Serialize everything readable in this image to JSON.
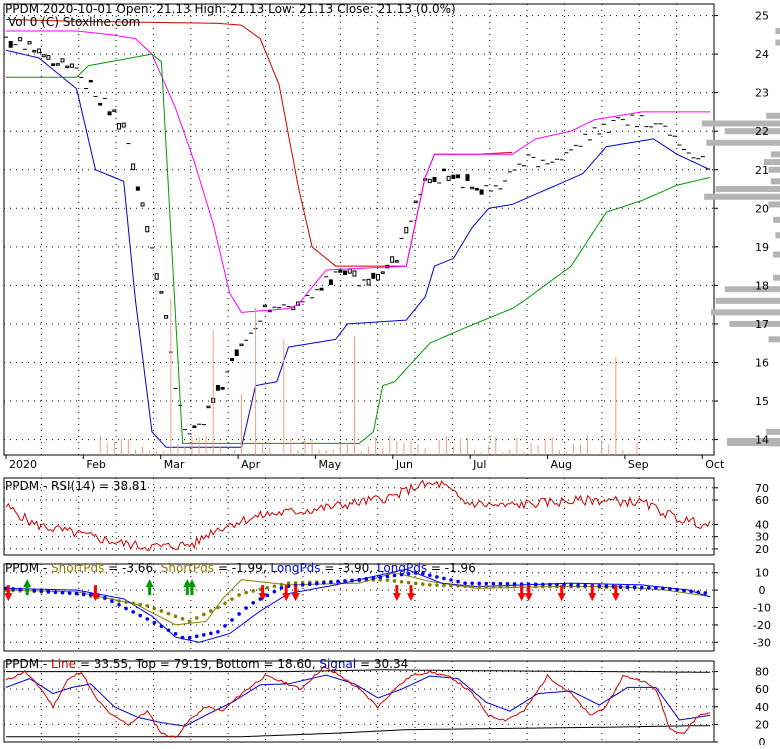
{
  "header": {
    "main": "PPDM  2020-10-01 Open: 21.13  High: 21.13  Low: 21.13  Close: 21.13 (0.0%)",
    "vol": "Vol 0   (C) Stoxline.com"
  },
  "colors": {
    "background": "#ffffff",
    "grid": "#000000",
    "price": "#000000",
    "ma_short": "#0000cc",
    "ma_mid": "#009900",
    "channel_upper": "#ff00ff",
    "channel_upper2": "#cc0000",
    "volume": "#f0a080",
    "volume_profile": "#b4b4b4",
    "rsi": "#cc0000",
    "short_pds": "#808000",
    "long_pds": "#0000ff",
    "arrow_up": "#009900",
    "arrow_down": "#ff0000",
    "sig_black": "#000000"
  },
  "chart_data": [
    {
      "type": "candlestick",
      "x_labels": [
        "2020",
        "Feb",
        "Mar",
        "Apr",
        "May",
        "Jun",
        "Jul",
        "Aug",
        "Sep",
        "Oct"
      ],
      "y_ticks": [
        14,
        15,
        16,
        17,
        18,
        19,
        20,
        21,
        22,
        23,
        24,
        25
      ],
      "ylim": [
        13.6,
        25.3
      ],
      "volume_profile": [
        {
          "price": 13.9,
          "weight": 0.05
        },
        {
          "price": 14.2,
          "weight": 0.06
        },
        {
          "price": 16.6,
          "weight": 0.05
        },
        {
          "price": 17.0,
          "weight": 0.22
        },
        {
          "price": 17.3,
          "weight": 0.3
        },
        {
          "price": 17.6,
          "weight": 0.28
        },
        {
          "price": 17.9,
          "weight": 0.24
        },
        {
          "price": 18.2,
          "weight": 0.03
        },
        {
          "price": 18.8,
          "weight": 0.03
        },
        {
          "price": 19.3,
          "weight": 0.02
        },
        {
          "price": 19.7,
          "weight": 0.03
        },
        {
          "price": 20.1,
          "weight": 0.05
        },
        {
          "price": 20.3,
          "weight": 0.33
        },
        {
          "price": 20.5,
          "weight": 0.28
        },
        {
          "price": 20.7,
          "weight": 0.04
        },
        {
          "price": 21.0,
          "weight": 0.05
        },
        {
          "price": 21.2,
          "weight": 0.07
        },
        {
          "price": 21.4,
          "weight": 0.04
        },
        {
          "price": 21.7,
          "weight": 0.32
        },
        {
          "price": 22.0,
          "weight": 0.24
        },
        {
          "price": 22.2,
          "weight": 0.34
        },
        {
          "price": 22.4,
          "weight": 0.06
        },
        {
          "price": 24.3,
          "weight": 0.02
        },
        {
          "price": 24.6,
          "weight": 0.02
        }
      ]
    },
    {
      "type": "line",
      "title": "PPDM - RSI(14) = 38.81",
      "y_ticks": [
        20,
        30,
        40,
        60,
        70
      ],
      "ylim": [
        15,
        78
      ]
    },
    {
      "type": "line",
      "title_parts": [
        {
          "text": "PPDM - ",
          "color": "#000000"
        },
        {
          "text": "ShortPds",
          "color": "#808000"
        },
        {
          "text": " = -3.66, ",
          "color": "#000000"
        },
        {
          "text": "ShortPds",
          "color": "#808000"
        },
        {
          "text": " = -1.99, ",
          "color": "#000000"
        },
        {
          "text": "LongPds",
          "color": "#0000ff"
        },
        {
          "text": " = -3.90, ",
          "color": "#000000"
        },
        {
          "text": "LongPds",
          "color": "#0000ff"
        },
        {
          "text": " = -1.96",
          "color": "#000000"
        }
      ],
      "y_ticks": [
        10,
        0,
        -10,
        -20,
        -30
      ],
      "ylim": [
        -35,
        15
      ],
      "up_arrows": [
        9,
        61,
        77,
        79
      ],
      "down_arrows": [
        1,
        38,
        109,
        119,
        123,
        166,
        172,
        219,
        222,
        236,
        249,
        259
      ]
    },
    {
      "type": "line",
      "title_parts": [
        {
          "text": "PPDM - ",
          "color": "#000000"
        },
        {
          "text": "Line",
          "color": "#cc0000"
        },
        {
          "text": " = 33.55, ",
          "color": "#000000"
        },
        {
          "text": "Top",
          "color": "#000000"
        },
        {
          "text": " = 79.19, ",
          "color": "#000000"
        },
        {
          "text": "Bottom",
          "color": "#000000"
        },
        {
          "text": " = 18.60, ",
          "color": "#000000"
        },
        {
          "text": "Signal",
          "color": "#0000cc"
        },
        {
          "text": " = 30.34",
          "color": "#000000"
        }
      ],
      "y_ticks": [
        0,
        20,
        40,
        60,
        80
      ],
      "ylim": [
        0,
        92
      ]
    }
  ]
}
